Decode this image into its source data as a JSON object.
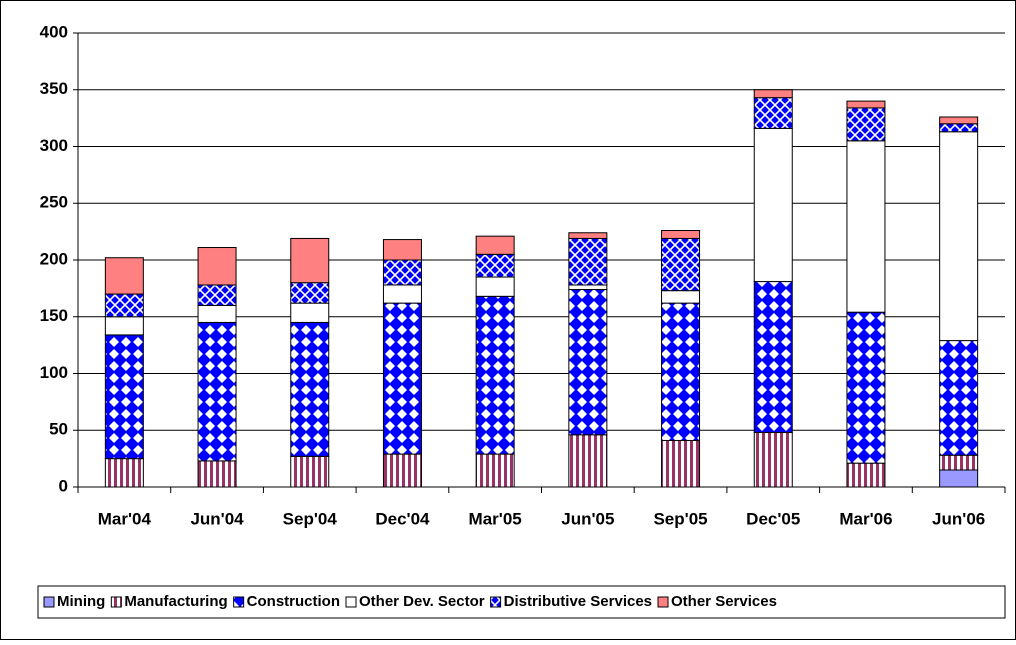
{
  "chart_data": {
    "type": "stacked-bar",
    "categories": [
      "Mar'04",
      "Jun'04",
      "Sep'04",
      "Dec'04",
      "Mar'05",
      "Jun'05",
      "Sep'05",
      "Dec'05",
      "Mar'06",
      "Jun'06"
    ],
    "series": [
      {
        "name": "Mining",
        "color": "#9999ff",
        "pattern": "solid",
        "values": [
          0,
          0,
          0,
          0,
          0,
          0,
          0,
          0,
          0,
          15
        ]
      },
      {
        "name": "Manufacturing",
        "color": "#993366",
        "pattern": "stripes",
        "values": [
          25,
          23,
          27,
          29,
          29,
          46,
          41,
          48,
          21,
          13
        ]
      },
      {
        "name": "Construction",
        "color": "#0000ff",
        "pattern": "diamonds",
        "values": [
          109,
          122,
          118,
          133,
          139,
          128,
          121,
          133,
          133,
          101
        ]
      },
      {
        "name": "Other Dev. Sector",
        "color": "#ffffff",
        "pattern": "solid",
        "values": [
          16,
          15,
          17,
          16,
          17,
          4,
          11,
          135,
          151,
          184
        ]
      },
      {
        "name": "Distributive Services",
        "color": "#0000ff",
        "pattern": "crosshatch",
        "values": [
          20,
          18,
          18,
          22,
          20,
          41,
          46,
          27,
          29,
          7
        ]
      },
      {
        "name": "Other Services",
        "color": "#ff8080",
        "pattern": "solid",
        "values": [
          32,
          33,
          39,
          18,
          16,
          5,
          7,
          7,
          6,
          6
        ]
      }
    ],
    "ylim": [
      0,
      400
    ],
    "yticks": [
      0,
      50,
      100,
      150,
      200,
      250,
      300,
      350,
      400
    ],
    "grid": true,
    "legend": "bottom"
  }
}
